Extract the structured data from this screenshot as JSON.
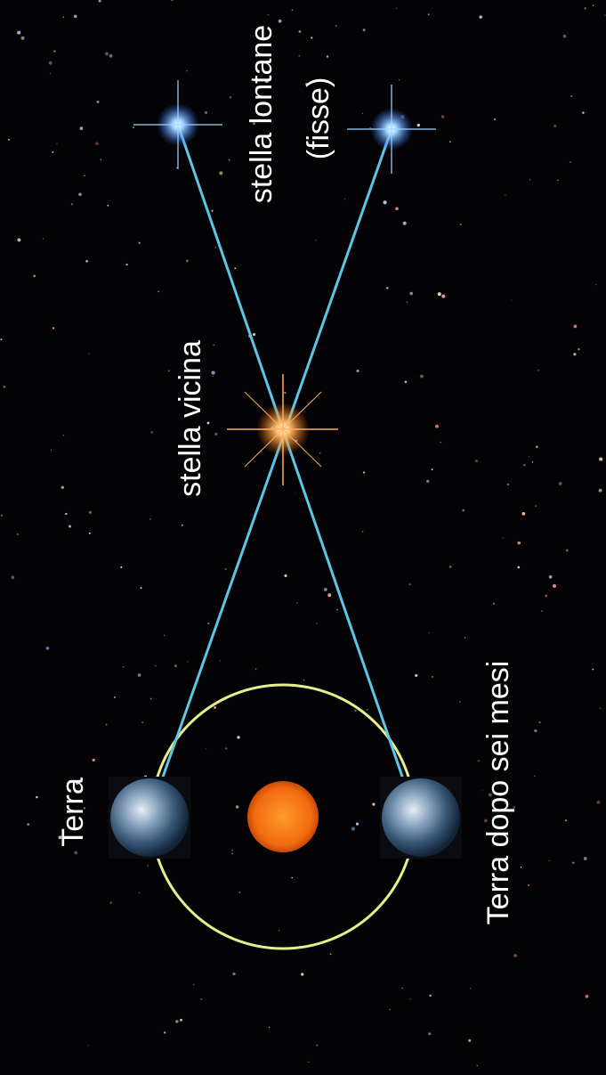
{
  "labels": {
    "earth": "Terra",
    "earth_later": "Terra dopo sei mesi",
    "near_star": "stella vicina",
    "far_stars": "stella lontane",
    "far_stars_note": "(fisse)"
  }
}
